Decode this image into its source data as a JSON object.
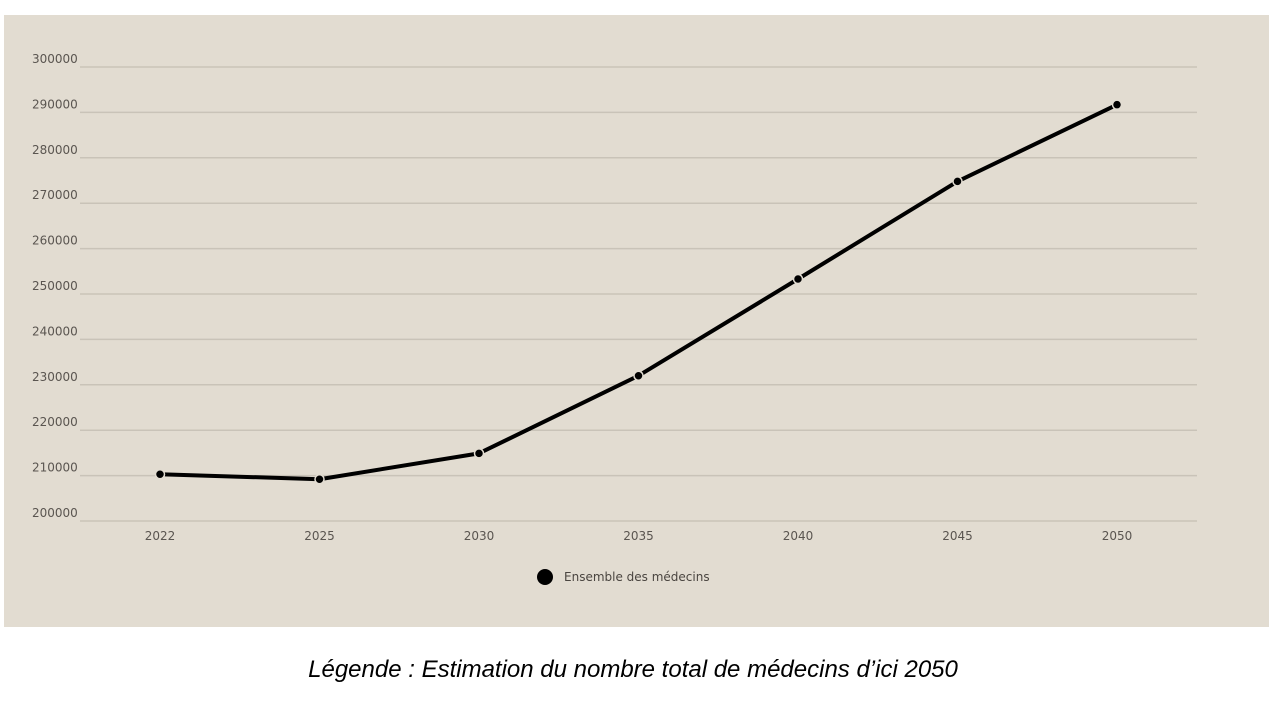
{
  "chart_data": {
    "type": "line",
    "categories": [
      "2022",
      "2025",
      "2030",
      "2035",
      "2040",
      "2045",
      "2050"
    ],
    "series": [
      {
        "name": "Ensemble des médecins",
        "values": [
          210300,
          209200,
          214900,
          232000,
          253300,
          274800,
          291700
        ]
      }
    ],
    "ylim": [
      200000,
      300000
    ],
    "yticks": [
      "200000",
      "210000",
      "220000",
      "230000",
      "240000",
      "250000",
      "260000",
      "270000",
      "280000",
      "290000",
      "300000"
    ],
    "grid": true,
    "legend_position": "bottom-center",
    "colors": {
      "background": "#e2dcd1",
      "line": "#000000",
      "grid": "#c9c3b8"
    }
  },
  "caption": "Légende : Estimation du nombre total de médecins d’ici 2050"
}
